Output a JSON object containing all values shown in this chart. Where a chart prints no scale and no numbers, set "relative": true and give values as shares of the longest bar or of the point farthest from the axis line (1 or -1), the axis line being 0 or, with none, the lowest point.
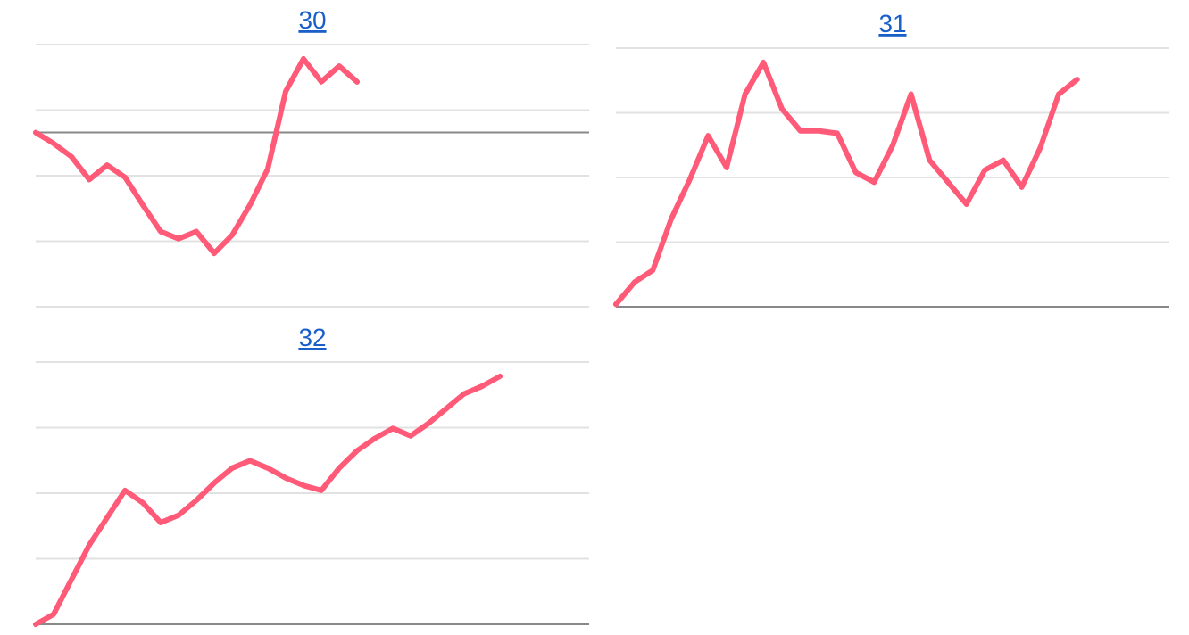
{
  "chart_data": [
    {
      "type": "line",
      "title": "30",
      "relative": true,
      "grid": "y",
      "color": "#ff5a78",
      "categories": [
        null,
        null,
        null,
        null,
        null,
        null,
        null,
        null,
        null,
        null,
        null,
        null,
        null,
        null,
        null,
        null,
        null,
        null,
        null,
        null,
        null,
        null,
        null,
        null,
        null,
        null,
        null,
        null,
        null,
        null,
        null,
        null
      ],
      "values": [
        0,
        -0.09,
        -0.2,
        -0.39,
        -0.27,
        -0.37,
        -0.6,
        -0.82,
        -0.88,
        -0.82,
        -1,
        -0.85,
        -0.6,
        -0.3,
        0.34,
        0.61,
        0.42,
        0.55,
        0.42,
        null,
        null,
        null,
        null,
        null,
        null,
        null,
        null,
        null,
        null,
        null,
        null,
        null
      ]
    },
    {
      "type": "line",
      "title": "31",
      "relative": true,
      "grid": "y",
      "color": "#ff5a78",
      "categories": [
        null,
        null,
        null,
        null,
        null,
        null,
        null,
        null,
        null,
        null,
        null,
        null,
        null,
        null,
        null,
        null,
        null,
        null,
        null,
        null,
        null,
        null,
        null,
        null,
        null,
        null,
        null,
        null,
        null,
        null,
        null
      ],
      "values": [
        0.01,
        0.1,
        0.15,
        0.36,
        0.52,
        0.7,
        0.57,
        0.87,
        1,
        0.81,
        0.72,
        0.72,
        0.71,
        0.55,
        0.51,
        0.66,
        0.87,
        0.6,
        0.51,
        0.42,
        0.56,
        0.6,
        0.49,
        0.65,
        0.87,
        0.93,
        null,
        null,
        null,
        null,
        null
      ]
    },
    {
      "type": "line",
      "title": "32",
      "relative": true,
      "grid": "y",
      "color": "#ff5a78",
      "categories": [
        null,
        null,
        null,
        null,
        null,
        null,
        null,
        null,
        null,
        null,
        null,
        null,
        null,
        null,
        null,
        null,
        null,
        null,
        null,
        null,
        null,
        null,
        null,
        null,
        null,
        null,
        null,
        null,
        null,
        null,
        null,
        null
      ],
      "values": [
        0,
        0.04,
        0.18,
        0.32,
        0.43,
        0.54,
        0.49,
        0.41,
        0.44,
        0.5,
        0.57,
        0.63,
        0.66,
        0.63,
        0.59,
        0.56,
        0.54,
        0.63,
        0.7,
        0.75,
        0.79,
        0.76,
        0.81,
        0.87,
        0.93,
        0.96,
        1,
        null,
        null,
        null,
        null,
        null
      ]
    }
  ]
}
